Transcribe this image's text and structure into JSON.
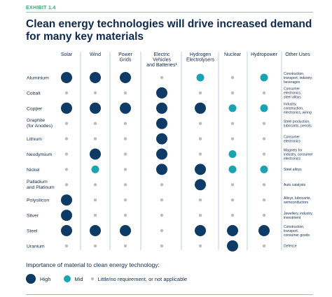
{
  "exhibit_label": "EXHIBIT 1.4",
  "title": "Clean energy technologies will drive increased demand for many key materials",
  "colors": {
    "high": "#0d3b66",
    "mid": "#1ba3b1",
    "little": "#b9bcc0",
    "accent": "#3aa86b"
  },
  "legend": {
    "title": "Importance of material to clean energy technology:",
    "high": "High",
    "mid": "Mid",
    "little": "Little/no requirement, or not applicable"
  },
  "chart_data": {
    "type": "table",
    "columns": [
      [
        "Solar"
      ],
      [
        "Wind"
      ],
      [
        "Power",
        "Grids"
      ],
      [
        "Electric",
        "Vehicles",
        "and Batteries¹"
      ],
      [
        "Hydrogen",
        "Electrolysers"
      ],
      [
        "Nuclear"
      ],
      [
        "Hydropower"
      ],
      [
        "Other Uses"
      ]
    ],
    "rows": [
      {
        "material": [
          "Aluminium"
        ],
        "levels": [
          "high",
          "high",
          "high",
          "little",
          "mid",
          "little",
          "mid"
        ],
        "other_uses": [
          "Construction,",
          "transport, industry,",
          "beverages"
        ]
      },
      {
        "material": [
          "Cobalt"
        ],
        "levels": [
          "little",
          "little",
          "little",
          "high",
          "little",
          "little",
          "little"
        ],
        "other_uses": [
          "Consumer",
          "electronics,",
          "steel alloys"
        ]
      },
      {
        "material": [
          "Copper"
        ],
        "levels": [
          "high",
          "high",
          "high",
          "high",
          "high",
          "mid",
          "mid"
        ],
        "other_uses": [
          "Industry,",
          "construction,",
          "electronics, wiring"
        ]
      },
      {
        "material": [
          "Graphite",
          "(for Anodes)"
        ],
        "levels": [
          "little",
          "little",
          "little",
          "high",
          "little",
          "little",
          "little"
        ],
        "other_uses": [
          "Steel production,",
          "lubricants, pencils"
        ]
      },
      {
        "material": [
          "Lithium"
        ],
        "levels": [
          "little",
          "little",
          "little",
          "high",
          "little",
          "little",
          "little"
        ],
        "other_uses": [
          "Consumer",
          "electronics"
        ]
      },
      {
        "material": [
          "Neodymium"
        ],
        "levels": [
          "little",
          "high",
          "little",
          "high",
          "little",
          "mid",
          "little"
        ],
        "other_uses": [
          "Magnets for",
          "industry, consumer",
          "electronics"
        ]
      },
      {
        "material": [
          "Nickel"
        ],
        "levels": [
          "little",
          "mid",
          "little",
          "high",
          "high",
          "mid",
          "mid"
        ],
        "other_uses": [
          "Steel alloys"
        ]
      },
      {
        "material": [
          "Palladium",
          "and Platinum"
        ],
        "levels": [
          "little",
          "little",
          "little",
          "little",
          "high",
          "little",
          "little"
        ],
        "other_uses": [
          "Auto catalysts"
        ]
      },
      {
        "material": [
          "Polysilicon"
        ],
        "levels": [
          "high",
          "little",
          "little",
          "little",
          "little",
          "little",
          "little"
        ],
        "other_uses": [
          "Alloys, lubricants,",
          "semiconductors"
        ]
      },
      {
        "material": [
          "Silver"
        ],
        "levels": [
          "high",
          "little",
          "little",
          "little",
          "little",
          "little",
          "little"
        ],
        "other_uses": [
          "Jewellery, industry,",
          "investment"
        ]
      },
      {
        "material": [
          "Steel"
        ],
        "levels": [
          "high",
          "high",
          "high",
          "little",
          "high",
          "high",
          "high"
        ],
        "other_uses": [
          "Construction,",
          "transport,",
          "consumer goods"
        ]
      },
      {
        "material": [
          "Uranium"
        ],
        "levels": [
          "little",
          "little",
          "little",
          "little",
          "little",
          "high",
          "little"
        ],
        "other_uses": [
          "Defence"
        ]
      }
    ]
  }
}
